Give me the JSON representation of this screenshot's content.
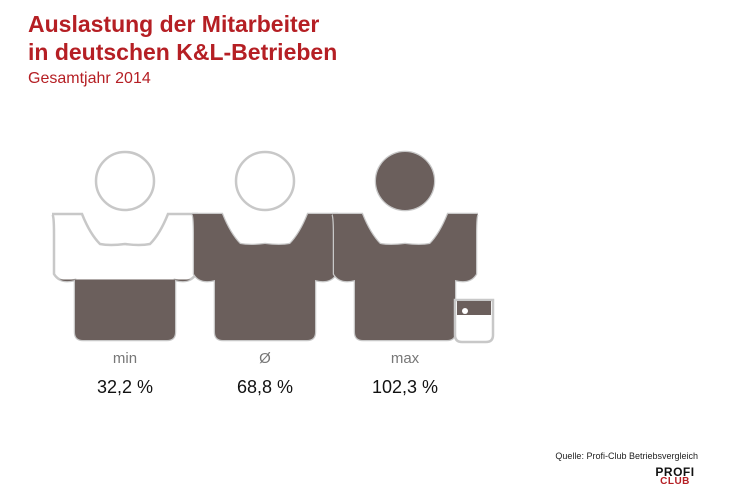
{
  "title_line1": "Auslastung der Mitarbeiter",
  "title_line2": "in deutschen K&L-Betrieben",
  "subtitle": "Gesamtjahr 2014",
  "source": "Quelle: Profi-Club Betriebsvergleich",
  "logo": {
    "line1": "PROFI",
    "line2": "CLUB"
  },
  "colors": {
    "title": "#b51f24",
    "fill": "#6b5f5c",
    "empty": "#ffffff",
    "outline": "#c8c8c8"
  },
  "chart_data": {
    "type": "pictogram",
    "categories": [
      "min",
      "Ø",
      "max"
    ],
    "values": [
      32.2,
      68.8,
      102.3
    ],
    "labels": [
      "32,2 %",
      "68,8 %",
      "102,3 %"
    ],
    "unit": "%",
    "ylim": [
      0,
      100
    ]
  }
}
